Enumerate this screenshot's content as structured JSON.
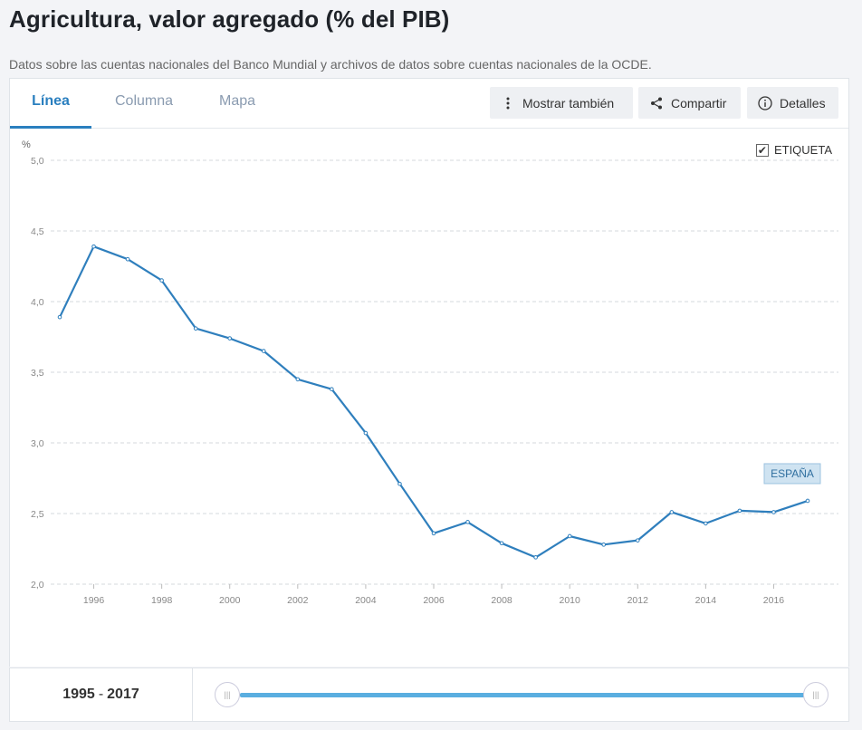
{
  "page": {
    "title": "Agricultura, valor agregado (% del PIB)",
    "subtitle": "Datos sobre las cuentas nacionales del Banco Mundial y archivos de datos sobre cuentas nacionales de la OCDE."
  },
  "tabs": [
    {
      "label": "Línea",
      "active": true
    },
    {
      "label": "Columna",
      "active": false
    },
    {
      "label": "Mapa",
      "active": false
    }
  ],
  "toolbar": {
    "show_also_label": "Mostrar también",
    "share_label": "Compartir",
    "details_label": "Detalles",
    "show_also_icon": "vertical-dots-icon",
    "share_icon": "share-icon",
    "details_icon": "info-icon"
  },
  "legend_toggle": {
    "label": "ETIQUETA",
    "checked": true
  },
  "footer": {
    "range_start": "1995",
    "range_sep": "-",
    "range_end": "2017"
  },
  "colors": {
    "line": "#2f7fbd",
    "accent": "#2a7fbf",
    "slider": "#5aaee0",
    "label_bg": "#cfe3f1"
  },
  "chart_data": {
    "type": "line",
    "ylabel": "%",
    "ylim": [
      2.0,
      5.0
    ],
    "yticks": [
      "2,0",
      "2,5",
      "3,0",
      "3,5",
      "4,0",
      "4,5",
      "5,0"
    ],
    "xticks": [
      "1996",
      "1998",
      "2000",
      "2002",
      "2004",
      "2006",
      "2008",
      "2010",
      "2012",
      "2014",
      "2016"
    ],
    "xlim": [
      1995,
      2017
    ],
    "grid": true,
    "series": [
      {
        "name": "ESPAÑA",
        "x": [
          1995,
          1996,
          1997,
          1998,
          1999,
          2000,
          2001,
          2002,
          2003,
          2004,
          2005,
          2006,
          2007,
          2008,
          2009,
          2010,
          2011,
          2012,
          2013,
          2014,
          2015,
          2016,
          2017
        ],
        "values": [
          3.89,
          4.39,
          4.3,
          4.15,
          3.81,
          3.74,
          3.65,
          3.45,
          3.38,
          3.07,
          2.71,
          2.36,
          2.44,
          2.29,
          2.19,
          2.34,
          2.28,
          2.31,
          2.51,
          2.43,
          2.52,
          2.51,
          2.59
        ]
      }
    ]
  }
}
